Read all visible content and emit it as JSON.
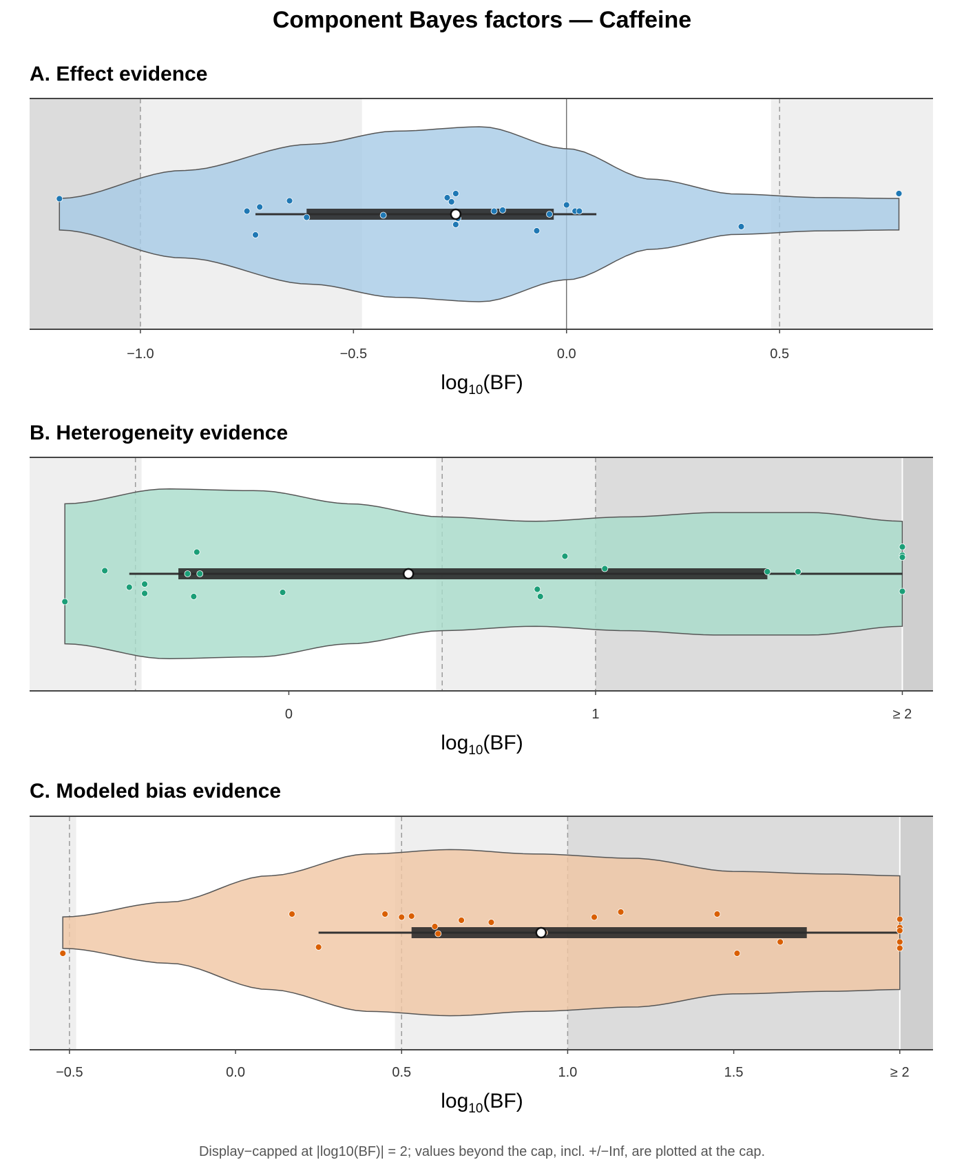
{
  "title": "Component Bayes factors — Caffeine",
  "note": "Display−capped at |log10(BF)| = 2; values beyond the cap, incl. +/−Inf, are plotted at the cap.",
  "chart_data": [
    {
      "type": "violin",
      "panel_title": "A. Effect evidence",
      "xlabel": {
        "main": "log",
        "sub": "10",
        "tail": "(BF)"
      },
      "xlim": [
        -1.26,
        0.86
      ],
      "ticks": [
        {
          "v": -1.0,
          "label": "−1.0"
        },
        {
          "v": -0.5,
          "label": "−0.5"
        },
        {
          "v": 0.0,
          "label": "0.0"
        },
        {
          "v": 0.5,
          "label": "0.5"
        }
      ],
      "bands": [
        {
          "from": -1.26,
          "to": -1.0,
          "shade": "#dcdcdc"
        },
        {
          "from": -1.0,
          "to": -0.48,
          "shade": "#efefef"
        },
        {
          "from": 0.48,
          "to": 0.86,
          "shade": "#efefef"
        }
      ],
      "dashed": [
        -1.0,
        0.5
      ],
      "solid": [
        0.0
      ],
      "color": "#1f78b4",
      "fill": "#a6cbe6",
      "violin_range": [
        -1.19,
        0.78
      ],
      "density": [
        [
          -1.19,
          0.18
        ],
        [
          -0.9,
          0.5
        ],
        [
          -0.6,
          0.8
        ],
        [
          -0.4,
          0.95
        ],
        [
          -0.2,
          1.0
        ],
        [
          0.0,
          0.75
        ],
        [
          0.2,
          0.4
        ],
        [
          0.4,
          0.23
        ],
        [
          0.6,
          0.19
        ],
        [
          0.78,
          0.18
        ]
      ],
      "box": {
        "q1": -0.61,
        "median": -0.26,
        "q3": -0.03,
        "whisker_low": -0.73,
        "whisker_high": 0.07
      },
      "points": [
        {
          "x": -1.19,
          "y": 0.15
        },
        {
          "x": -0.75,
          "y": 0.03
        },
        {
          "x": -0.73,
          "y": -0.2
        },
        {
          "x": -0.72,
          "y": 0.07
        },
        {
          "x": -0.65,
          "y": 0.13
        },
        {
          "x": -0.61,
          "y": -0.03
        },
        {
          "x": -0.43,
          "y": -0.01
        },
        {
          "x": -0.28,
          "y": 0.16
        },
        {
          "x": -0.27,
          "y": 0.12
        },
        {
          "x": -0.26,
          "y": 0.2
        },
        {
          "x": -0.255,
          "y": -0.04
        },
        {
          "x": -0.26,
          "y": -0.1
        },
        {
          "x": -0.17,
          "y": 0.03
        },
        {
          "x": -0.15,
          "y": 0.04
        },
        {
          "x": -0.07,
          "y": -0.16
        },
        {
          "x": -0.04,
          "y": 0.0
        },
        {
          "x": 0.0,
          "y": 0.09
        },
        {
          "x": 0.02,
          "y": 0.03
        },
        {
          "x": 0.03,
          "y": 0.03
        },
        {
          "x": 0.41,
          "y": -0.12
        },
        {
          "x": 0.78,
          "y": 0.2
        }
      ]
    },
    {
      "type": "violin",
      "panel_title": "B. Heterogeneity evidence",
      "xlabel": {
        "main": "log",
        "sub": "10",
        "tail": "(BF)"
      },
      "xlim": [
        -0.845,
        2.1
      ],
      "ticks": [
        {
          "v": 0,
          "label": "0"
        },
        {
          "v": 1,
          "label": "1"
        },
        {
          "v": 2,
          "label": "≥ 2"
        }
      ],
      "bands": [
        {
          "from": -0.845,
          "to": -0.48,
          "shade": "#efefef"
        },
        {
          "from": 0.48,
          "to": 1.0,
          "shade": "#efefef"
        },
        {
          "from": 1.0,
          "to": 2.0,
          "shade": "#dcdcdc"
        },
        {
          "from": 2.0,
          "to": 2.1,
          "shade": "#cfcfcf"
        }
      ],
      "dashed": [
        -0.5,
        0.5,
        1.0
      ],
      "solid": [
        2.0
      ],
      "color": "#1b9e77",
      "fill": "#a8dccb",
      "violin_range": [
        -0.73,
        2.0
      ],
      "density": [
        [
          -0.73,
          0.8
        ],
        [
          -0.4,
          0.97
        ],
        [
          -0.1,
          0.95
        ],
        [
          0.2,
          0.8
        ],
        [
          0.5,
          0.65
        ],
        [
          0.8,
          0.6
        ],
        [
          1.1,
          0.65
        ],
        [
          1.4,
          0.7
        ],
        [
          1.7,
          0.7
        ],
        [
          2.0,
          0.6
        ]
      ],
      "box": {
        "q1": -0.36,
        "median": 0.39,
        "q3": 1.56,
        "whisker_low": -0.52,
        "whisker_high": 2.0
      },
      "points": [
        {
          "x": -0.73,
          "y": -0.27
        },
        {
          "x": -0.6,
          "y": 0.03
        },
        {
          "x": -0.52,
          "y": -0.13
        },
        {
          "x": -0.47,
          "y": -0.1
        },
        {
          "x": -0.47,
          "y": -0.19
        },
        {
          "x": -0.33,
          "y": 0.0
        },
        {
          "x": -0.31,
          "y": -0.22
        },
        {
          "x": -0.3,
          "y": 0.21
        },
        {
          "x": -0.29,
          "y": 0.0
        },
        {
          "x": -0.02,
          "y": -0.18
        },
        {
          "x": 0.39,
          "y": 0.0
        },
        {
          "x": 0.81,
          "y": -0.15
        },
        {
          "x": 0.82,
          "y": -0.22
        },
        {
          "x": 0.9,
          "y": 0.17
        },
        {
          "x": 1.03,
          "y": 0.05
        },
        {
          "x": 1.56,
          "y": 0.02
        },
        {
          "x": 1.66,
          "y": 0.02
        },
        {
          "x": 2.0,
          "y": 0.26
        },
        {
          "x": 2.0,
          "y": 0.18
        },
        {
          "x": 2.0,
          "y": 0.16
        },
        {
          "x": 2.0,
          "y": -0.17
        }
      ]
    },
    {
      "type": "violin",
      "panel_title": "C. Modeled bias evidence",
      "xlabel": {
        "main": "log",
        "sub": "10",
        "tail": "(BF)"
      },
      "xlim": [
        -0.62,
        2.1
      ],
      "ticks": [
        {
          "v": -0.5,
          "label": "−0.5"
        },
        {
          "v": 0.0,
          "label": "0.0"
        },
        {
          "v": 0.5,
          "label": "0.5"
        },
        {
          "v": 1.0,
          "label": "1.0"
        },
        {
          "v": 1.5,
          "label": "1.5"
        },
        {
          "v": 2.0,
          "label": "≥ 2"
        }
      ],
      "bands": [
        {
          "from": -0.62,
          "to": -0.48,
          "shade": "#efefef"
        },
        {
          "from": 0.48,
          "to": 1.0,
          "shade": "#efefef"
        },
        {
          "from": 1.0,
          "to": 2.0,
          "shade": "#dcdcdc"
        },
        {
          "from": 2.0,
          "to": 2.1,
          "shade": "#cfcfcf"
        }
      ],
      "dashed": [
        -0.5,
        0.5,
        1.0
      ],
      "solid": [
        2.0
      ],
      "color": "#d95f02",
      "fill": "#f0c6a2",
      "violin_range": [
        -0.52,
        2.0
      ],
      "density": [
        [
          -0.52,
          0.18
        ],
        [
          -0.2,
          0.35
        ],
        [
          0.1,
          0.65
        ],
        [
          0.4,
          0.9
        ],
        [
          0.65,
          0.95
        ],
        [
          0.9,
          0.9
        ],
        [
          1.2,
          0.85
        ],
        [
          1.5,
          0.7
        ],
        [
          1.8,
          0.67
        ],
        [
          2.0,
          0.65
        ]
      ],
      "box": {
        "q1": 0.53,
        "median": 0.92,
        "q3": 1.72,
        "whisker_low": 0.25,
        "whisker_high": 2.0
      },
      "points": [
        {
          "x": -0.52,
          "y": -0.2
        },
        {
          "x": 0.17,
          "y": 0.18
        },
        {
          "x": 0.25,
          "y": -0.14
        },
        {
          "x": 0.45,
          "y": 0.18
        },
        {
          "x": 0.5,
          "y": 0.15
        },
        {
          "x": 0.53,
          "y": 0.16
        },
        {
          "x": 0.6,
          "y": 0.06
        },
        {
          "x": 0.61,
          "y": -0.01
        },
        {
          "x": 0.68,
          "y": 0.12
        },
        {
          "x": 0.77,
          "y": 0.1
        },
        {
          "x": 0.93,
          "y": 0.0
        },
        {
          "x": 1.08,
          "y": 0.15
        },
        {
          "x": 1.16,
          "y": 0.2
        },
        {
          "x": 1.45,
          "y": 0.18
        },
        {
          "x": 1.51,
          "y": -0.2
        },
        {
          "x": 1.64,
          "y": -0.09
        },
        {
          "x": 2.0,
          "y": 0.13
        },
        {
          "x": 2.0,
          "y": 0.05
        },
        {
          "x": 2.0,
          "y": 0.02
        },
        {
          "x": 2.0,
          "y": -0.09
        },
        {
          "x": 2.0,
          "y": -0.15
        }
      ]
    }
  ]
}
